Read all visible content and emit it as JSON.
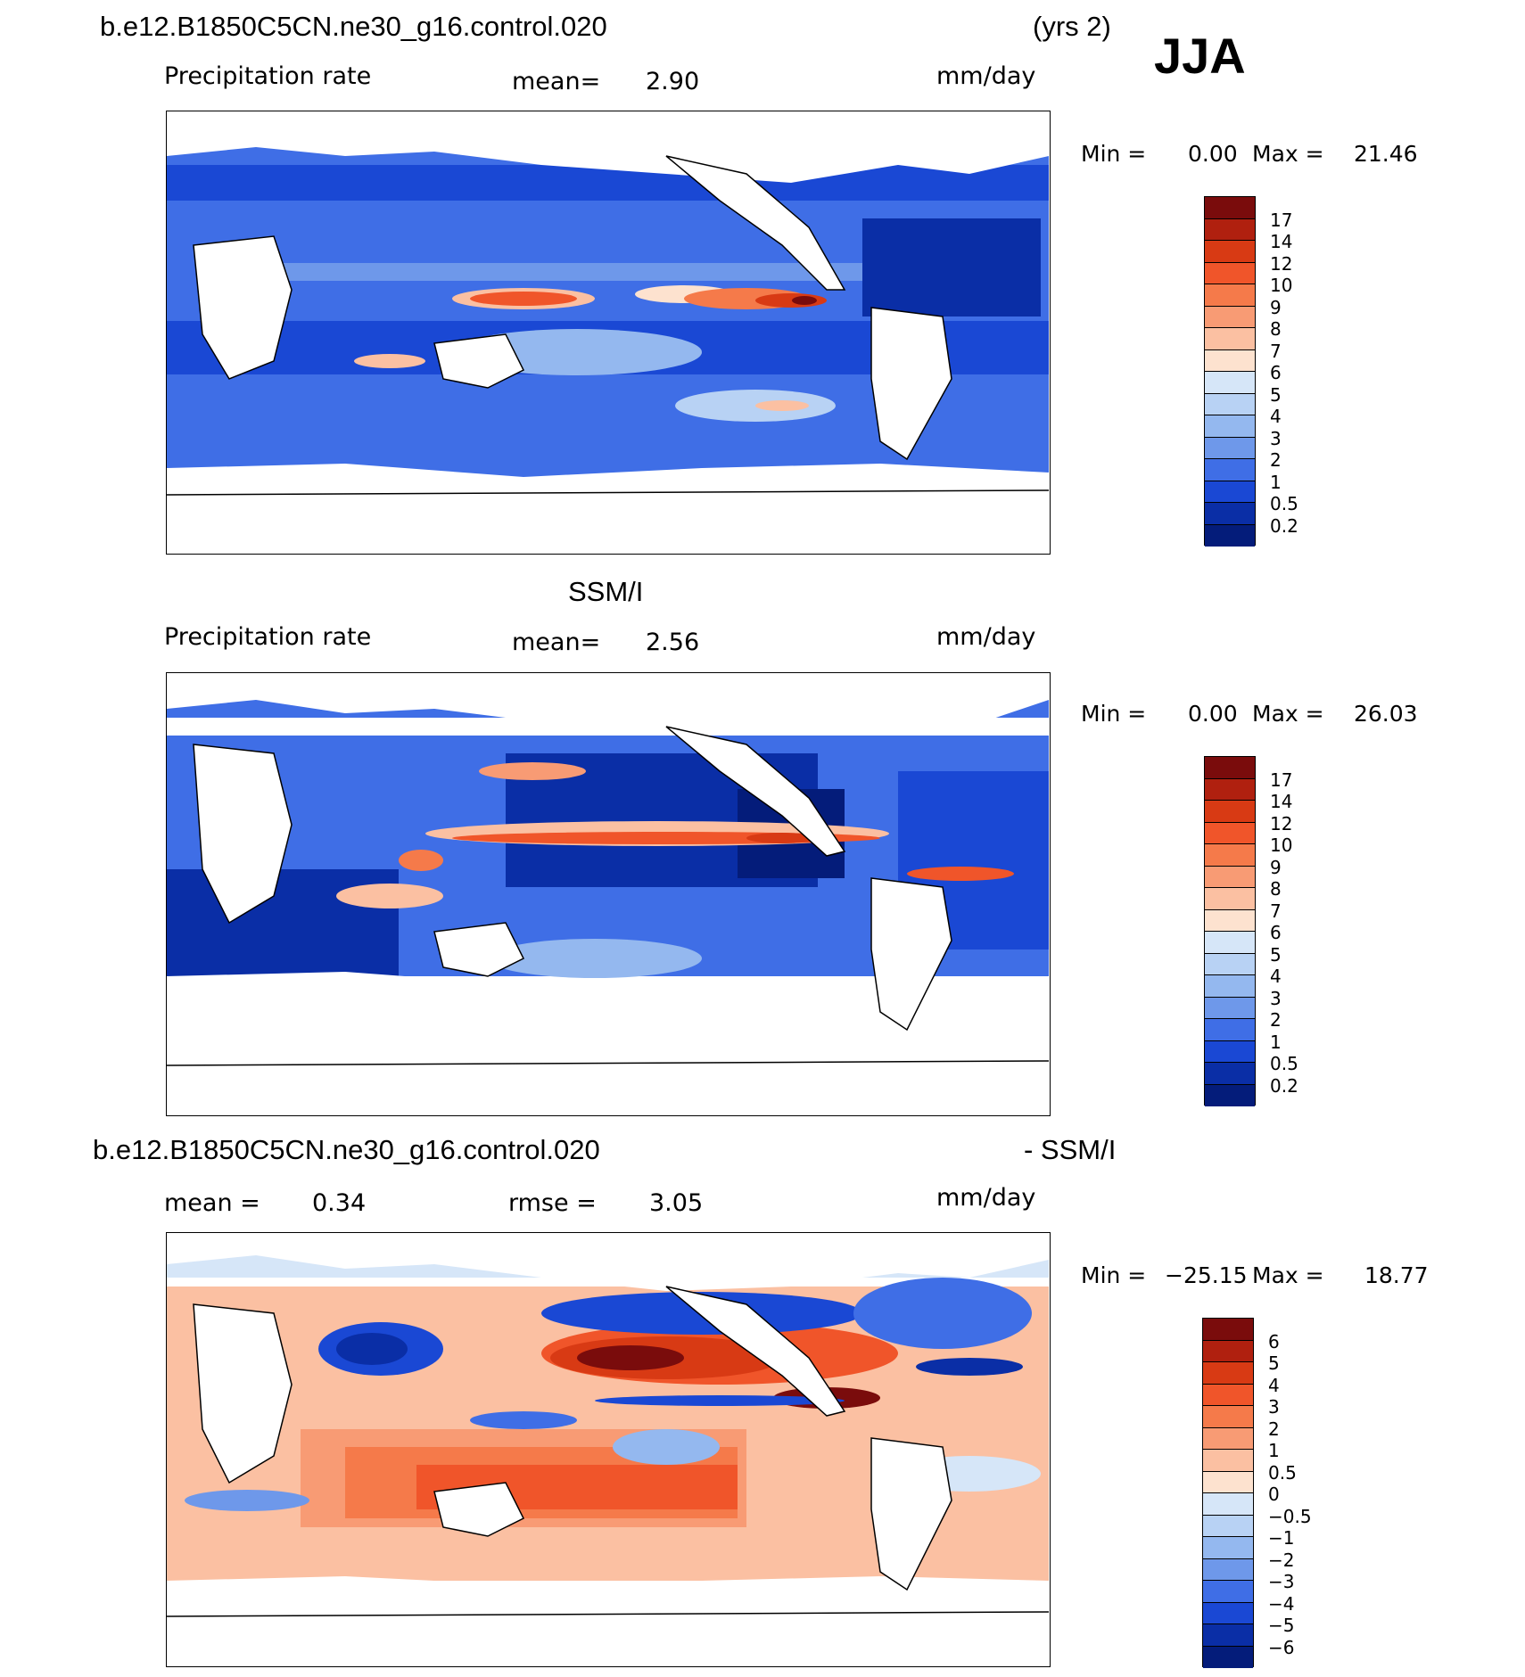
{
  "header": {
    "case_name": "b.e12.B1850C5CN.ne30_g16.control.020",
    "years": "(yrs 2)",
    "season": "JJA"
  },
  "panels": [
    {
      "id": "model",
      "title": "",
      "field": "Precipitation rate",
      "mean_label": "mean=",
      "mean_value": "2.90",
      "units": "mm/day",
      "min_label": "Min =",
      "min_value": "0.00",
      "max_label": "Max =",
      "max_value": "21.46",
      "colorbar": {
        "labels": [
          "17",
          "14",
          "12",
          "10",
          "9",
          "8",
          "7",
          "6",
          "5",
          "4",
          "3",
          "2",
          "1",
          "0.5",
          "0.2"
        ],
        "colors": [
          "#7a0c0c",
          "#b0200f",
          "#d83a14",
          "#f0552a",
          "#f57a4a",
          "#f89b74",
          "#fbc0a2",
          "#fde2cf",
          "#d6e6f8",
          "#b8d2f4",
          "#94b8ef",
          "#6e98ea",
          "#3f6ee6",
          "#1a48d4",
          "#0a2ea6",
          "#041c7a"
        ]
      }
    },
    {
      "id": "obs",
      "title": "SSM/I",
      "field": "Precipitation rate",
      "mean_label": "mean=",
      "mean_value": "2.56",
      "units": "mm/day",
      "min_label": "Min =",
      "min_value": "0.00",
      "max_label": "Max =",
      "max_value": "26.03",
      "colorbar": {
        "labels": [
          "17",
          "14",
          "12",
          "10",
          "9",
          "8",
          "7",
          "6",
          "5",
          "4",
          "3",
          "2",
          "1",
          "0.5",
          "0.2"
        ],
        "colors": [
          "#7a0c0c",
          "#b0200f",
          "#d83a14",
          "#f0552a",
          "#f57a4a",
          "#f89b74",
          "#fbc0a2",
          "#fde2cf",
          "#d6e6f8",
          "#b8d2f4",
          "#94b8ef",
          "#6e98ea",
          "#3f6ee6",
          "#1a48d4",
          "#0a2ea6",
          "#041c7a"
        ]
      }
    },
    {
      "id": "diff",
      "title_left": "b.e12.B1850C5CN.ne30_g16.control.020",
      "title_right": "- SSM/I",
      "mean_label": "mean =",
      "mean_value": "0.34",
      "rmse_label": "rmse =",
      "rmse_value": "3.05",
      "units": "mm/day",
      "min_label": "Min =",
      "min_value": "−25.15",
      "max_label": "Max =",
      "max_value": "18.77",
      "colorbar": {
        "labels": [
          "6",
          "5",
          "4",
          "3",
          "2",
          "1",
          "0.5",
          "0",
          "−0.5",
          "−1",
          "−2",
          "−3",
          "−4",
          "−5",
          "−6"
        ],
        "colors": [
          "#7a0c0c",
          "#b0200f",
          "#d83a14",
          "#f0552a",
          "#f57a4a",
          "#f89b74",
          "#fbc0a2",
          "#fde2cf",
          "#d6e6f8",
          "#b8d2f4",
          "#94b8ef",
          "#6e98ea",
          "#3f6ee6",
          "#1a48d4",
          "#0a2ea6",
          "#041c7a"
        ]
      }
    }
  ]
}
